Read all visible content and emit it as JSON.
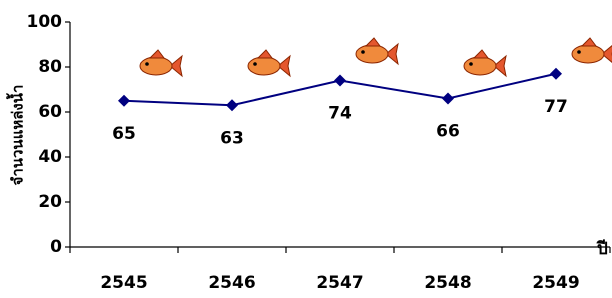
{
  "chart_data": {
    "type": "line",
    "y_label": "จำนวนแหล่งน้ำ",
    "x_label": "ปี",
    "categories": [
      "2545",
      "2546",
      "2547",
      "2548",
      "2549"
    ],
    "values": [
      65,
      63,
      74,
      66,
      77
    ],
    "color": "#000080",
    "ylim": [
      0,
      100
    ],
    "yticks": [
      0,
      20,
      40,
      60,
      80,
      100
    ]
  }
}
